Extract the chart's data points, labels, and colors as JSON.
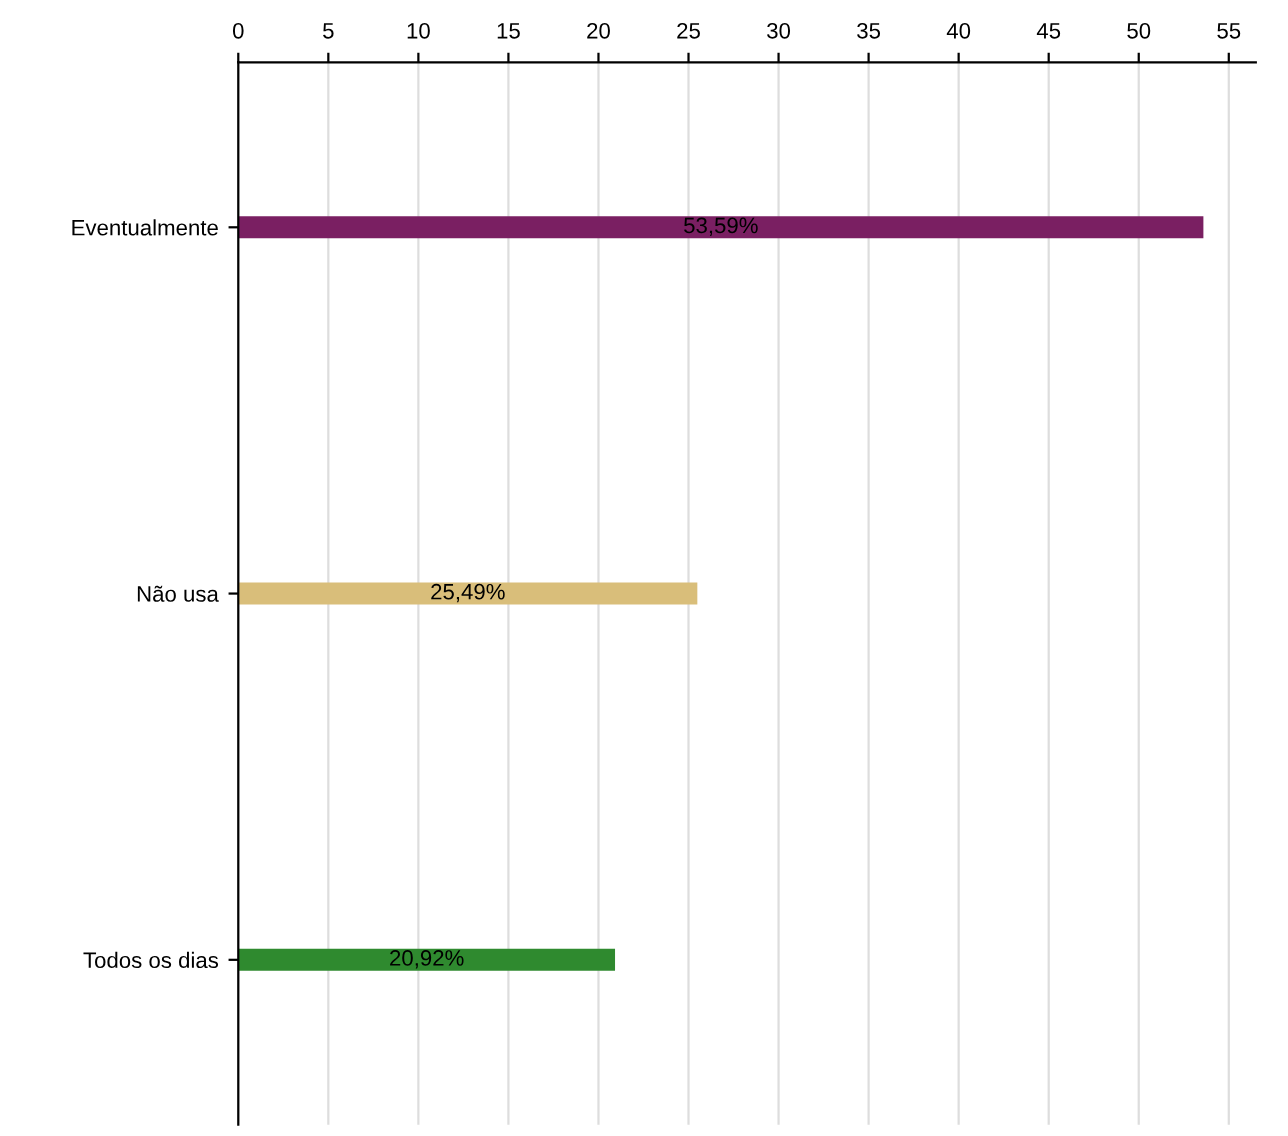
{
  "chart_data": {
    "type": "bar",
    "orientation": "horizontal",
    "categories": [
      "Eventualmente",
      "Não usa",
      "Todos os dias"
    ],
    "values": [
      53.59,
      25.49,
      20.92
    ],
    "colors": [
      "#7a1f62",
      "#d9be7a",
      "#2f8a2f"
    ],
    "value_labels": [
      "53,59%",
      "25,49%",
      "20,92%"
    ],
    "xlim": [
      0,
      56.5
    ],
    "xticks": [
      0,
      5,
      10,
      15,
      20,
      25,
      30,
      35,
      40,
      45,
      50,
      55
    ],
    "grid": "x"
  }
}
